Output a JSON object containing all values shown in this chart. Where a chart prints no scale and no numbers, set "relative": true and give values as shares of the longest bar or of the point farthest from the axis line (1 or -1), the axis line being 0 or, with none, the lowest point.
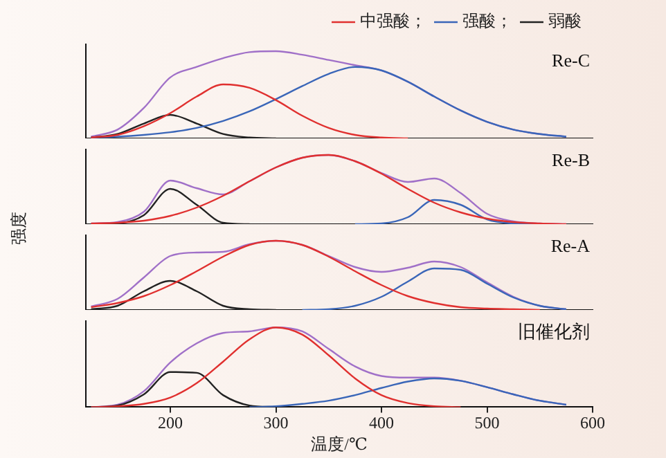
{
  "chart_data": [
    {
      "type": "line",
      "relative": true,
      "ylabel": "强度",
      "legend": "top right",
      "marker": "none",
      "line_style": "solid",
      "grid": false,
      "tick_labels": false,
      "xlim": [
        120,
        600
      ],
      "x": [
        125,
        150,
        175,
        200,
        225,
        250,
        275,
        300,
        325,
        350,
        375,
        400,
        425,
        450,
        475,
        500,
        525,
        550,
        575
      ],
      "annotations": [
        "Re-C"
      ],
      "series": [
        {
          "name": "中强酸；",
          "color": "#e0302f",
          "values": [
            0.01,
            0.04,
            0.14,
            0.29,
            0.48,
            0.62,
            0.58,
            0.44,
            0.26,
            0.12,
            0.04,
            0.01,
            0,
            null,
            null,
            null,
            null,
            null,
            null
          ]
        },
        {
          "name": "强酸；",
          "color": "#3a66b8",
          "values": [
            0.01,
            0.02,
            0.04,
            0.07,
            0.12,
            0.2,
            0.31,
            0.45,
            0.6,
            0.74,
            0.82,
            0.78,
            0.65,
            0.48,
            0.32,
            0.19,
            0.1,
            0.05,
            0.02
          ]
        },
        {
          "name": "弱酸",
          "color": "#222222",
          "values": [
            0.01,
            0.05,
            0.17,
            0.27,
            0.17,
            0.05,
            0.01,
            0,
            null,
            null,
            null,
            null,
            null,
            null,
            null,
            null,
            null,
            null,
            null
          ]
        },
        {
          "color": "#a070c8",
          "values": [
            0.02,
            0.1,
            0.35,
            0.7,
            0.82,
            0.92,
            0.99,
            1.0,
            0.96,
            0.9,
            0.84,
            0.78,
            0.65,
            0.48,
            0.32,
            0.19,
            0.1,
            0.05,
            0.02
          ]
        }
      ]
    },
    {
      "type": "line",
      "relative": true,
      "marker": "none",
      "line_style": "solid",
      "grid": false,
      "tick_labels": false,
      "xlim": [
        120,
        600
      ],
      "x": [
        125,
        150,
        175,
        200,
        225,
        250,
        275,
        300,
        325,
        350,
        375,
        400,
        425,
        450,
        475,
        500,
        525,
        550,
        575
      ],
      "annotations": [
        "Re-B"
      ],
      "series": [
        {
          "color": "#e0302f",
          "values": [
            0.01,
            0.02,
            0.05,
            0.12,
            0.24,
            0.41,
            0.62,
            0.82,
            0.96,
            1.0,
            0.91,
            0.73,
            0.51,
            0.31,
            0.17,
            0.08,
            0.03,
            0.01,
            0
          ]
        },
        {
          "color": "#3a66b8",
          "values": [
            null,
            null,
            null,
            null,
            null,
            null,
            null,
            null,
            null,
            null,
            0,
            0.01,
            0.1,
            0.35,
            0.28,
            0.07,
            0.01,
            0,
            null
          ]
        },
        {
          "color": "#222222",
          "values": [
            0,
            0.01,
            0.13,
            0.51,
            0.28,
            0.02,
            0,
            null,
            null,
            null,
            null,
            null,
            null,
            null,
            null,
            null,
            null,
            null,
            null
          ]
        },
        {
          "color": "#a070c8",
          "values": [
            0.01,
            0.03,
            0.18,
            0.63,
            0.52,
            0.43,
            0.62,
            0.82,
            0.96,
            1.0,
            0.91,
            0.74,
            0.61,
            0.66,
            0.45,
            0.15,
            0.04,
            0.01,
            0
          ]
        }
      ]
    },
    {
      "type": "line",
      "relative": true,
      "marker": "none",
      "line_style": "solid",
      "grid": false,
      "tick_labels": false,
      "xlim": [
        120,
        600
      ],
      "x": [
        125,
        150,
        175,
        200,
        225,
        250,
        275,
        300,
        325,
        350,
        375,
        400,
        425,
        450,
        475,
        500,
        525,
        550,
        575
      ],
      "annotations": [
        "Re-A"
      ],
      "series": [
        {
          "color": "#e0302f",
          "values": [
            0.04,
            0.1,
            0.2,
            0.36,
            0.56,
            0.77,
            0.94,
            1.0,
            0.94,
            0.77,
            0.56,
            0.36,
            0.2,
            0.1,
            0.04,
            0.02,
            0.01,
            0,
            null
          ]
        },
        {
          "color": "#3a66b8",
          "values": [
            null,
            null,
            null,
            null,
            null,
            null,
            null,
            null,
            0,
            0.01,
            0.06,
            0.19,
            0.41,
            0.6,
            0.58,
            0.38,
            0.18,
            0.06,
            0.01
          ]
        },
        {
          "color": "#222222",
          "values": [
            0.01,
            0.06,
            0.27,
            0.42,
            0.27,
            0.06,
            0.01,
            0,
            null,
            null,
            null,
            null,
            null,
            null,
            null,
            null,
            null,
            null,
            null
          ]
        },
        {
          "color": "#a070c8",
          "values": [
            0.05,
            0.16,
            0.47,
            0.78,
            0.83,
            0.84,
            0.95,
            1.0,
            0.94,
            0.78,
            0.62,
            0.55,
            0.61,
            0.7,
            0.62,
            0.4,
            0.19,
            0.06,
            0.01
          ]
        }
      ]
    },
    {
      "type": "line",
      "relative": true,
      "xlabel": "温度/℃",
      "marker": "none",
      "line_style": "solid",
      "grid": false,
      "tick_labels": "x",
      "xlim": [
        120,
        600
      ],
      "xticks": [
        200,
        300,
        400,
        500,
        600
      ],
      "x": [
        125,
        150,
        175,
        200,
        225,
        250,
        275,
        300,
        325,
        350,
        375,
        400,
        425,
        450,
        475,
        500,
        525,
        550,
        575
      ],
      "annotations": [
        "旧催化剂"
      ],
      "series": [
        {
          "color": "#e0302f",
          "values": [
            0,
            0.01,
            0.04,
            0.12,
            0.3,
            0.57,
            0.85,
            1.0,
            0.91,
            0.65,
            0.36,
            0.15,
            0.05,
            0.01,
            0,
            null,
            null,
            null,
            null
          ]
        },
        {
          "color": "#3a66b8",
          "values": [
            null,
            null,
            null,
            null,
            null,
            null,
            0,
            0.01,
            0.04,
            0.08,
            0.15,
            0.24,
            0.32,
            0.36,
            0.33,
            0.25,
            0.16,
            0.08,
            0.03
          ]
        },
        {
          "color": "#222222",
          "values": [
            0,
            0.02,
            0.16,
            0.44,
            0.43,
            0.15,
            0.02,
            0,
            null,
            null,
            null,
            null,
            null,
            null,
            null,
            null,
            null,
            null,
            null
          ]
        },
        {
          "color": "#a070c8",
          "values": [
            0,
            0.03,
            0.2,
            0.56,
            0.8,
            0.93,
            0.95,
            1.0,
            0.95,
            0.73,
            0.51,
            0.39,
            0.37,
            0.37,
            0.33,
            0.25,
            0.16,
            0.08,
            0.03
          ]
        }
      ]
    }
  ]
}
